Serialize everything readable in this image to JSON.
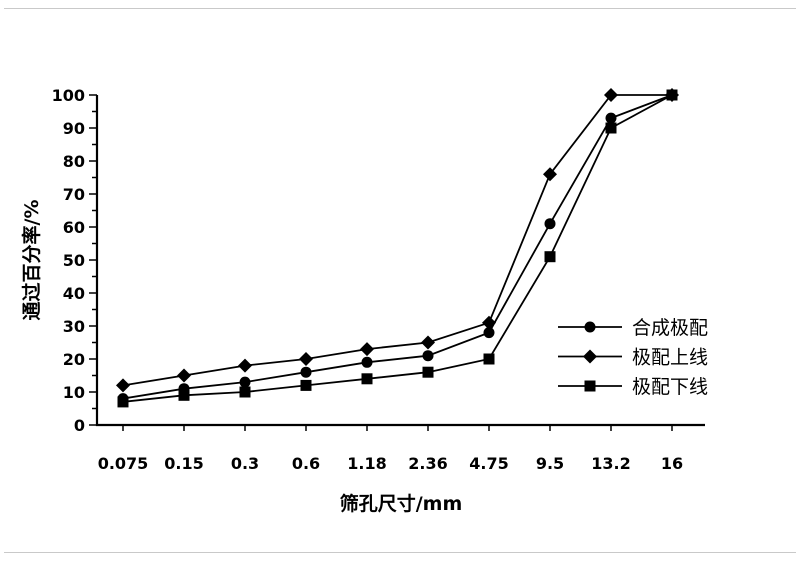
{
  "chart_data": {
    "type": "line",
    "title": "",
    "xlabel": "筛孔尺寸/mm",
    "ylabel": "通过百分率/%",
    "categories": [
      "0.075",
      "0.15",
      "0.3",
      "0.6",
      "1.18",
      "2.36",
      "4.75",
      "9.5",
      "13.2",
      "16"
    ],
    "series": [
      {
        "name": "合成极配",
        "marker": "circle",
        "values": [
          8,
          11,
          13,
          16,
          19,
          21,
          28,
          61,
          93,
          100
        ]
      },
      {
        "name": "极配上线",
        "marker": "diamond",
        "values": [
          12,
          15,
          18,
          20,
          23,
          25,
          31,
          76,
          100,
          100
        ]
      },
      {
        "name": "极配下线",
        "marker": "square",
        "values": [
          7,
          9,
          10,
          12,
          14,
          16,
          20,
          51,
          90,
          100
        ]
      }
    ],
    "ylim": [
      0,
      100
    ],
    "y_major_step": 10,
    "y_minor_step": 5,
    "y_tick_labels": [
      "0",
      "10",
      "20",
      "30",
      "40",
      "50",
      "60",
      "70",
      "80",
      "90",
      "100"
    ],
    "grid": false,
    "legend_position": "inside-right-middle",
    "colors": {
      "line": "#000000",
      "marker": "#000000",
      "text": "#000000",
      "background": "#ffffff"
    }
  }
}
